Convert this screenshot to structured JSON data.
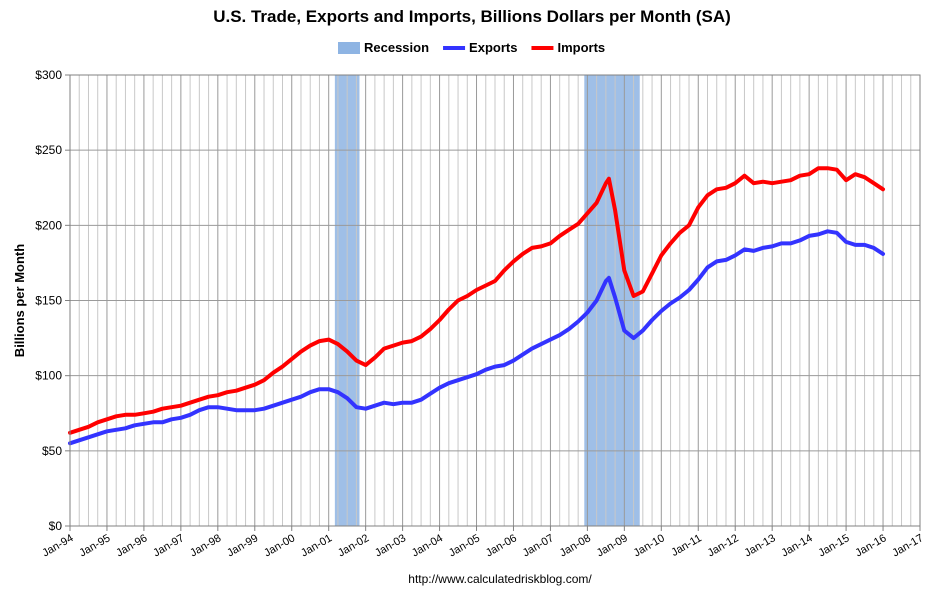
{
  "chart_data": {
    "type": "line",
    "title": "U.S. Trade, Exports and Imports, Billions Dollars per Month (SA)",
    "ylabel": "Billions per Month",
    "xlabel": "",
    "source": "http://www.calculatedriskblog.com/",
    "ylim": [
      0,
      300
    ],
    "yticks": [
      0,
      50,
      100,
      150,
      200,
      250,
      300
    ],
    "ytick_labels": [
      "$0",
      "$50",
      "$100",
      "$150",
      "$200",
      "$250",
      "$300"
    ],
    "xlim": [
      "1994-01",
      "2017-01"
    ],
    "xtick_labels": [
      "Jan-94",
      "Jan-95",
      "Jan-96",
      "Jan-97",
      "Jan-98",
      "Jan-99",
      "Jan-00",
      "Jan-01",
      "Jan-02",
      "Jan-03",
      "Jan-04",
      "Jan-05",
      "Jan-06",
      "Jan-07",
      "Jan-08",
      "Jan-09",
      "Jan-10",
      "Jan-11",
      "Jan-12",
      "Jan-13",
      "Jan-14",
      "Jan-15",
      "Jan-16",
      "Jan-17"
    ],
    "grid": true,
    "legend_position": "top-center",
    "legend": [
      {
        "label": "Recession",
        "color": "#8EB4E3",
        "kind": "band"
      },
      {
        "label": "Exports",
        "color": "#3333FF",
        "kind": "line"
      },
      {
        "label": "Imports",
        "color": "#FF0000",
        "kind": "line"
      }
    ],
    "recessions": [
      {
        "start": "2001-03",
        "end": "2001-11"
      },
      {
        "start": "2007-12",
        "end": "2009-06"
      }
    ],
    "series": [
      {
        "name": "Exports",
        "color": "#3333FF",
        "points": [
          [
            "1994-01",
            55
          ],
          [
            "1994-04",
            57
          ],
          [
            "1994-07",
            59
          ],
          [
            "1994-10",
            61
          ],
          [
            "1995-01",
            63
          ],
          [
            "1995-04",
            64
          ],
          [
            "1995-07",
            65
          ],
          [
            "1995-10",
            67
          ],
          [
            "1996-01",
            68
          ],
          [
            "1996-04",
            69
          ],
          [
            "1996-07",
            69
          ],
          [
            "1996-10",
            71
          ],
          [
            "1997-01",
            72
          ],
          [
            "1997-04",
            74
          ],
          [
            "1997-07",
            77
          ],
          [
            "1997-10",
            79
          ],
          [
            "1998-01",
            79
          ],
          [
            "1998-04",
            78
          ],
          [
            "1998-07",
            77
          ],
          [
            "1998-10",
            77
          ],
          [
            "1999-01",
            77
          ],
          [
            "1999-04",
            78
          ],
          [
            "1999-07",
            80
          ],
          [
            "1999-10",
            82
          ],
          [
            "2000-01",
            84
          ],
          [
            "2000-04",
            86
          ],
          [
            "2000-07",
            89
          ],
          [
            "2000-10",
            91
          ],
          [
            "2001-01",
            91
          ],
          [
            "2001-04",
            89
          ],
          [
            "2001-07",
            85
          ],
          [
            "2001-10",
            79
          ],
          [
            "2002-01",
            78
          ],
          [
            "2002-04",
            80
          ],
          [
            "2002-07",
            82
          ],
          [
            "2002-10",
            81
          ],
          [
            "2003-01",
            82
          ],
          [
            "2003-04",
            82
          ],
          [
            "2003-07",
            84
          ],
          [
            "2003-10",
            88
          ],
          [
            "2004-01",
            92
          ],
          [
            "2004-04",
            95
          ],
          [
            "2004-07",
            97
          ],
          [
            "2004-10",
            99
          ],
          [
            "2005-01",
            101
          ],
          [
            "2005-04",
            104
          ],
          [
            "2005-07",
            106
          ],
          [
            "2005-10",
            107
          ],
          [
            "2006-01",
            110
          ],
          [
            "2006-04",
            114
          ],
          [
            "2006-07",
            118
          ],
          [
            "2006-10",
            121
          ],
          [
            "2007-01",
            124
          ],
          [
            "2007-04",
            127
          ],
          [
            "2007-07",
            131
          ],
          [
            "2007-10",
            136
          ],
          [
            "2008-01",
            142
          ],
          [
            "2008-04",
            150
          ],
          [
            "2008-07",
            163
          ],
          [
            "2008-08",
            165
          ],
          [
            "2008-10",
            152
          ],
          [
            "2009-01",
            130
          ],
          [
            "2009-04",
            125
          ],
          [
            "2009-07",
            130
          ],
          [
            "2009-10",
            137
          ],
          [
            "2010-01",
            143
          ],
          [
            "2010-04",
            148
          ],
          [
            "2010-07",
            152
          ],
          [
            "2010-10",
            157
          ],
          [
            "2011-01",
            164
          ],
          [
            "2011-04",
            172
          ],
          [
            "2011-07",
            176
          ],
          [
            "2011-10",
            177
          ],
          [
            "2012-01",
            180
          ],
          [
            "2012-04",
            184
          ],
          [
            "2012-07",
            183
          ],
          [
            "2012-10",
            185
          ],
          [
            "2013-01",
            186
          ],
          [
            "2013-04",
            188
          ],
          [
            "2013-07",
            188
          ],
          [
            "2013-10",
            190
          ],
          [
            "2014-01",
            193
          ],
          [
            "2014-04",
            194
          ],
          [
            "2014-07",
            196
          ],
          [
            "2014-10",
            195
          ],
          [
            "2015-01",
            189
          ],
          [
            "2015-04",
            187
          ],
          [
            "2015-07",
            187
          ],
          [
            "2015-10",
            185
          ],
          [
            "2016-01",
            181
          ]
        ]
      },
      {
        "name": "Imports",
        "color": "#FF0000",
        "points": [
          [
            "1994-01",
            62
          ],
          [
            "1994-04",
            64
          ],
          [
            "1994-07",
            66
          ],
          [
            "1994-10",
            69
          ],
          [
            "1995-01",
            71
          ],
          [
            "1995-04",
            73
          ],
          [
            "1995-07",
            74
          ],
          [
            "1995-10",
            74
          ],
          [
            "1996-01",
            75
          ],
          [
            "1996-04",
            76
          ],
          [
            "1996-07",
            78
          ],
          [
            "1996-10",
            79
          ],
          [
            "1997-01",
            80
          ],
          [
            "1997-04",
            82
          ],
          [
            "1997-07",
            84
          ],
          [
            "1997-10",
            86
          ],
          [
            "1998-01",
            87
          ],
          [
            "1998-04",
            89
          ],
          [
            "1998-07",
            90
          ],
          [
            "1998-10",
            92
          ],
          [
            "1999-01",
            94
          ],
          [
            "1999-04",
            97
          ],
          [
            "1999-07",
            102
          ],
          [
            "1999-10",
            106
          ],
          [
            "2000-01",
            111
          ],
          [
            "2000-04",
            116
          ],
          [
            "2000-07",
            120
          ],
          [
            "2000-10",
            123
          ],
          [
            "2001-01",
            124
          ],
          [
            "2001-04",
            121
          ],
          [
            "2001-07",
            116
          ],
          [
            "2001-10",
            110
          ],
          [
            "2002-01",
            107
          ],
          [
            "2002-04",
            112
          ],
          [
            "2002-07",
            118
          ],
          [
            "2002-10",
            120
          ],
          [
            "2003-01",
            122
          ],
          [
            "2003-04",
            123
          ],
          [
            "2003-07",
            126
          ],
          [
            "2003-10",
            131
          ],
          [
            "2004-01",
            137
          ],
          [
            "2004-04",
            144
          ],
          [
            "2004-07",
            150
          ],
          [
            "2004-10",
            153
          ],
          [
            "2005-01",
            157
          ],
          [
            "2005-04",
            160
          ],
          [
            "2005-07",
            163
          ],
          [
            "2005-10",
            170
          ],
          [
            "2006-01",
            176
          ],
          [
            "2006-04",
            181
          ],
          [
            "2006-07",
            185
          ],
          [
            "2006-10",
            186
          ],
          [
            "2007-01",
            188
          ],
          [
            "2007-04",
            193
          ],
          [
            "2007-07",
            197
          ],
          [
            "2007-10",
            201
          ],
          [
            "2008-01",
            208
          ],
          [
            "2008-04",
            215
          ],
          [
            "2008-07",
            228
          ],
          [
            "2008-08",
            231
          ],
          [
            "2008-10",
            210
          ],
          [
            "2009-01",
            170
          ],
          [
            "2009-04",
            153
          ],
          [
            "2009-07",
            156
          ],
          [
            "2009-10",
            168
          ],
          [
            "2010-01",
            180
          ],
          [
            "2010-04",
            188
          ],
          [
            "2010-07",
            195
          ],
          [
            "2010-10",
            200
          ],
          [
            "2011-01",
            212
          ],
          [
            "2011-04",
            220
          ],
          [
            "2011-07",
            224
          ],
          [
            "2011-10",
            225
          ],
          [
            "2012-01",
            228
          ],
          [
            "2012-04",
            233
          ],
          [
            "2012-07",
            228
          ],
          [
            "2012-10",
            229
          ],
          [
            "2013-01",
            228
          ],
          [
            "2013-04",
            229
          ],
          [
            "2013-07",
            230
          ],
          [
            "2013-10",
            233
          ],
          [
            "2014-01",
            234
          ],
          [
            "2014-04",
            238
          ],
          [
            "2014-07",
            238
          ],
          [
            "2014-10",
            237
          ],
          [
            "2015-01",
            230
          ],
          [
            "2015-04",
            234
          ],
          [
            "2015-07",
            232
          ],
          [
            "2015-10",
            228
          ],
          [
            "2016-01",
            224
          ]
        ]
      }
    ]
  }
}
